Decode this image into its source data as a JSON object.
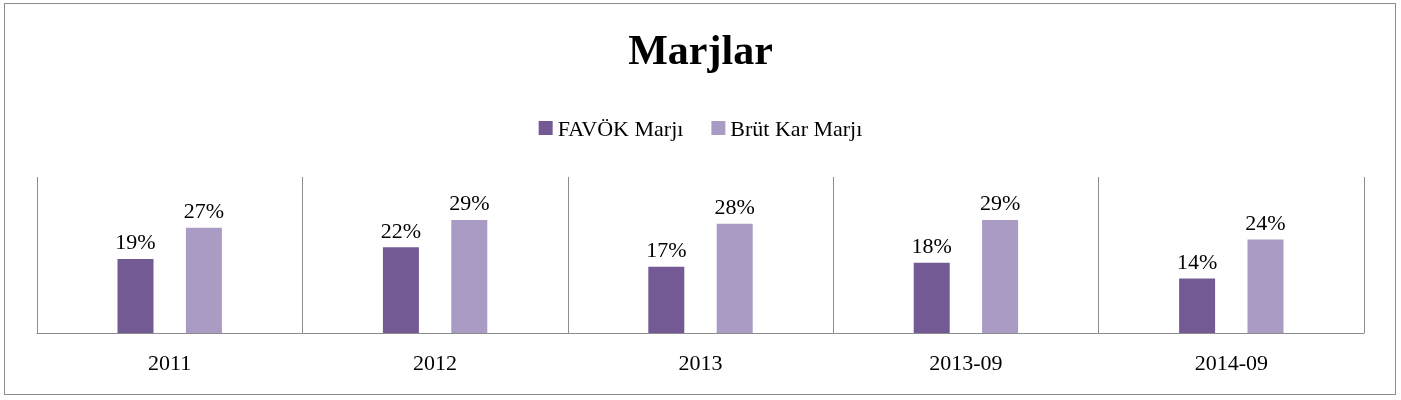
{
  "chart_data": {
    "type": "bar",
    "title": "Marjlar",
    "categories": [
      "2011",
      "2012",
      "2013",
      "2013-09",
      "2014-09"
    ],
    "series": [
      {
        "name": "FAVÖK Marjı",
        "color": "#735a94",
        "values": [
          19,
          22,
          17,
          18,
          14
        ],
        "value_labels": [
          "19%",
          "22%",
          "17%",
          "18%",
          "14%"
        ]
      },
      {
        "name": "Brüt Kar Marjı",
        "color": "#a99bc4",
        "values": [
          27,
          29,
          28,
          29,
          24
        ],
        "value_labels": [
          "27%",
          "29%",
          "28%",
          "29%",
          "24%"
        ]
      }
    ],
    "ylim": [
      0,
      40
    ],
    "legend": "top",
    "tick_labels": "x"
  }
}
